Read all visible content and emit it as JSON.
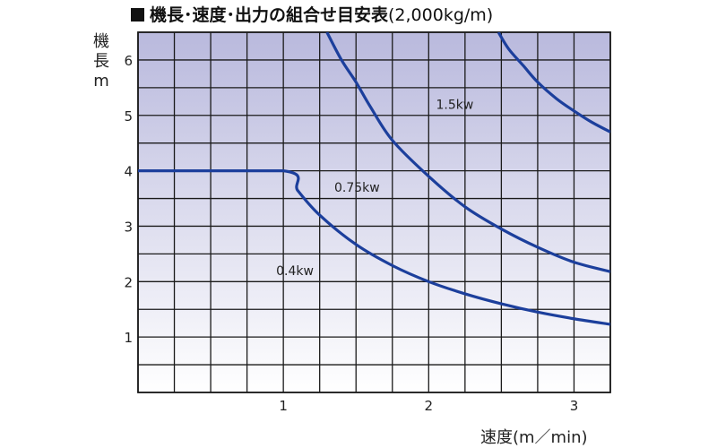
{
  "title": {
    "main": "機長･速度･出力の組合せ目安表",
    "sub": "(2,000kg/m)"
  },
  "ylabel": [
    "機",
    "長",
    "m"
  ],
  "xlabel": "速度(m／min)",
  "chart_data": {
    "type": "line",
    "title": "機長･速度･出力の組合せ目安表 (2,000kg/m)",
    "xlabel": "速度(m／min)",
    "ylabel": "機長 m",
    "xlim": [
      0,
      3.25
    ],
    "ylim": [
      0,
      6.5
    ],
    "x_ticks": [
      "1",
      "2",
      "3"
    ],
    "y_ticks": [
      "1",
      "2",
      "3",
      "4",
      "5",
      "6"
    ],
    "grid": true,
    "colors": {
      "line": "#1c3f9c",
      "grid": "#1a1a1a",
      "bg_top": "#b9b9dd",
      "bg_bottom": "#ffffff"
    },
    "series": [
      {
        "name": "0.4kw",
        "points": [
          [
            0,
            4.0
          ],
          [
            1.0,
            4.0
          ],
          [
            1.1,
            3.64
          ],
          [
            1.25,
            3.2
          ],
          [
            1.5,
            2.67
          ],
          [
            1.75,
            2.29
          ],
          [
            2.0,
            2.0
          ],
          [
            2.25,
            1.78
          ],
          [
            2.5,
            1.6
          ],
          [
            2.75,
            1.45
          ],
          [
            3.0,
            1.33
          ],
          [
            3.25,
            1.23
          ]
        ]
      },
      {
        "name": "0.75kw",
        "points": [
          [
            1.3,
            6.5
          ],
          [
            1.4,
            6.0
          ],
          [
            1.5,
            5.6
          ],
          [
            1.6,
            5.15
          ],
          [
            1.75,
            4.55
          ],
          [
            2.0,
            3.9
          ],
          [
            2.25,
            3.35
          ],
          [
            2.5,
            2.95
          ],
          [
            2.75,
            2.62
          ],
          [
            3.0,
            2.35
          ],
          [
            3.25,
            2.18
          ]
        ]
      },
      {
        "name": "1.5kw",
        "points": [
          [
            2.48,
            6.5
          ],
          [
            2.55,
            6.2
          ],
          [
            2.65,
            5.9
          ],
          [
            2.75,
            5.6
          ],
          [
            2.88,
            5.3
          ],
          [
            3.0,
            5.08
          ],
          [
            3.12,
            4.88
          ],
          [
            3.25,
            4.7
          ]
        ]
      }
    ],
    "curve_labels": [
      {
        "text": "0.4kw",
        "x": 1.0,
        "y": 2.2
      },
      {
        "text": "0.75kw",
        "x": 1.4,
        "y": 3.7
      },
      {
        "text": "1.5kw",
        "x": 2.1,
        "y": 5.2
      }
    ]
  }
}
